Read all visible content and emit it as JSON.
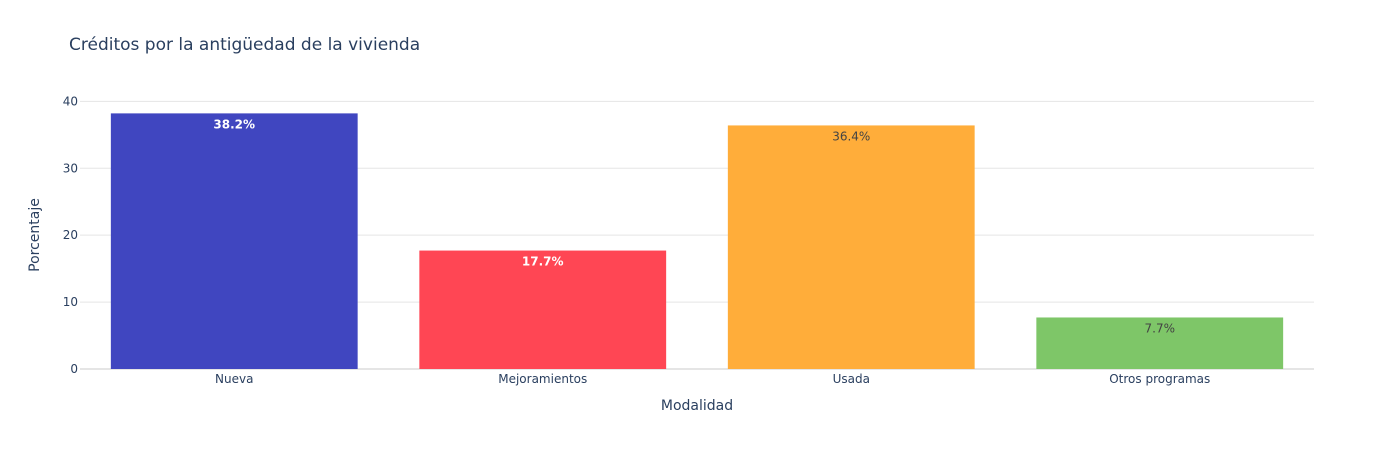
{
  "chart_data": {
    "type": "bar",
    "title": "Créditos por la antigüedad de la vivienda",
    "xlabel": "Modalidad",
    "ylabel": "Porcentaje",
    "categories": [
      "Nueva",
      "Mejoramientos",
      "Usada",
      "Otros programas"
    ],
    "values": [
      38.2,
      17.7,
      36.4,
      7.7
    ],
    "labels": [
      "38.2%",
      "17.7%",
      "36.4%",
      "7.7%"
    ],
    "colors": [
      "#4046c0",
      "#ff4654",
      "#ffad3a",
      "#7ec668"
    ],
    "label_colors": [
      "#ffffff",
      "#ffffff",
      "#444444",
      "#444444"
    ],
    "label_bold": [
      true,
      true,
      false,
      false
    ],
    "ylim": [
      0,
      40.2
    ],
    "yticks": [
      0,
      10,
      20,
      30,
      40
    ],
    "grid": true,
    "legend": "none"
  }
}
